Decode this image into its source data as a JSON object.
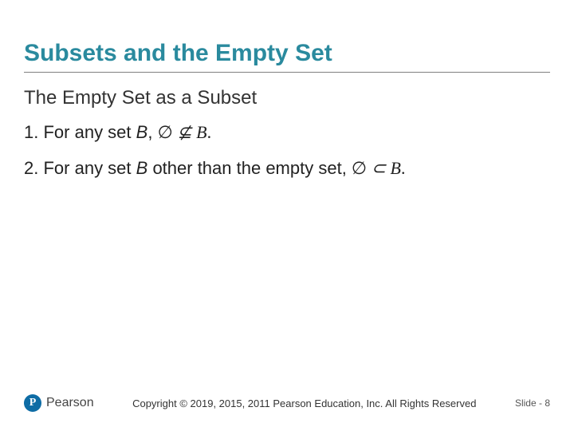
{
  "colors": {
    "title": "#2a8a9e",
    "divider": "#808080",
    "text": "#222222",
    "logo_bg": "#0e6ca5"
  },
  "title": "Subsets and the Empty Set",
  "subtitle": "The Empty Set as a Subset",
  "items": [
    {
      "num": "1.",
      "prefix": "For any set ",
      "var": "B",
      "suffix": ", ",
      "math_html": "<span class='math-up'>∅</span> ⊈ <span>B</span><span class='math-up'>.</span>"
    },
    {
      "num": "2.",
      "prefix": "For any set ",
      "var": "B",
      "suffix": " other than the empty set,  ",
      "math_html": "<span class='math-up'>∅</span> ⊂ <span>B</span><span class='math-up'>.</span>"
    }
  ],
  "footer": {
    "brand": "Pearson",
    "logo_letter": "P",
    "copyright": "Copyright © 2019, 2015, 2011 Pearson Education, Inc. All Rights Reserved",
    "slide_label": "Slide - ",
    "slide_num": "8"
  }
}
